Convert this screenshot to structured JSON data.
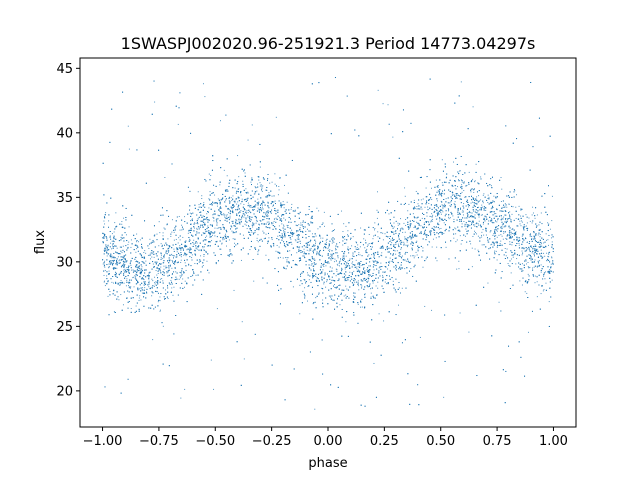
{
  "chart_data": {
    "type": "scatter",
    "title": "1SWASPJ002020.96-251921.3 Period 14773.04297s",
    "xlabel": "phase",
    "ylabel": "flux",
    "xlim": [
      -1.1,
      1.1
    ],
    "ylim": [
      17.2,
      45.8
    ],
    "xticks": [
      -1.0,
      -0.75,
      -0.5,
      -0.25,
      0.0,
      0.25,
      0.5,
      0.75,
      1.0
    ],
    "xtick_labels": [
      "−1.00",
      "−0.75",
      "−0.50",
      "−0.25",
      "0.00",
      "0.25",
      "0.50",
      "0.75",
      "1.00"
    ],
    "yticks": [
      20,
      25,
      30,
      35,
      40,
      45
    ],
    "ytick_labels": [
      "20",
      "25",
      "30",
      "35",
      "40",
      "45"
    ],
    "grid": false,
    "legend": "none",
    "marker_color": "#1f77b4",
    "series": [
      {
        "values_description": "folded light curve, phase-binned mean flux",
        "x": [
          -1.0,
          -0.95,
          -0.9,
          -0.85,
          -0.8,
          -0.75,
          -0.7,
          -0.65,
          -0.6,
          -0.55,
          -0.5,
          -0.45,
          -0.4,
          -0.35,
          -0.3,
          -0.25,
          -0.2,
          -0.15,
          -0.1,
          -0.05,
          0.0,
          0.05,
          0.1,
          0.15,
          0.2,
          0.25,
          0.3,
          0.35,
          0.4,
          0.45,
          0.5,
          0.55,
          0.6,
          0.65,
          0.7,
          0.75,
          0.8,
          0.85,
          0.9,
          0.95,
          1.0
        ],
        "y": [
          30.8,
          30.2,
          29.8,
          29.4,
          29.3,
          29.5,
          30.0,
          30.8,
          31.6,
          32.4,
          33.1,
          33.6,
          33.9,
          34.0,
          33.8,
          33.3,
          32.6,
          31.8,
          31.0,
          30.2,
          29.6,
          29.3,
          29.2,
          29.4,
          29.8,
          30.5,
          31.3,
          32.1,
          32.8,
          33.4,
          33.8,
          34.0,
          34.0,
          33.8,
          33.4,
          32.9,
          32.3,
          31.6,
          31.0,
          30.7,
          30.6
        ],
        "scatter_sigma": 1.6
      }
    ]
  }
}
